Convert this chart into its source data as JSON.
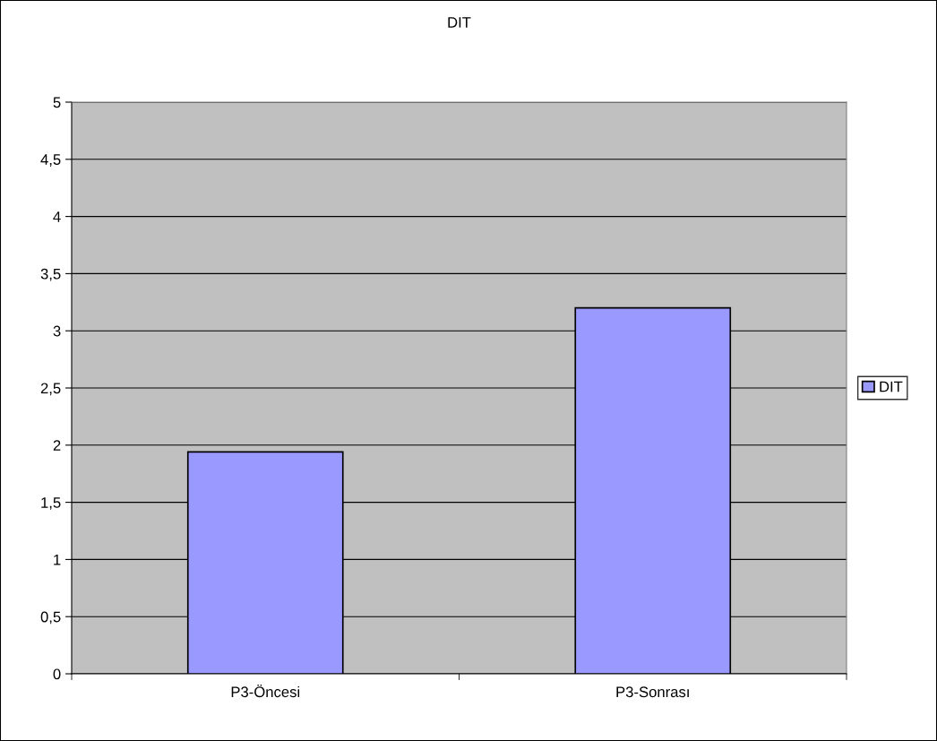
{
  "chart_data": {
    "type": "bar",
    "title": "DIT",
    "categories": [
      "P3-Öncesi",
      "P3-Sonrası"
    ],
    "series": [
      {
        "name": "DIT",
        "color": "#9999ff",
        "values": [
          1.94,
          3.2
        ]
      }
    ],
    "ylim": [
      0,
      5
    ],
    "yticks": [
      0,
      {
        "value": 0.5,
        "label": "0,5"
      },
      1,
      {
        "value": 1.5,
        "label": "1,5"
      },
      2,
      {
        "value": 2.5,
        "label": "2,5"
      },
      3,
      {
        "value": 3.5,
        "label": "3,5"
      },
      4,
      {
        "value": 4.5,
        "label": "4,5"
      },
      5
    ],
    "grid": "y",
    "legend": "right"
  }
}
